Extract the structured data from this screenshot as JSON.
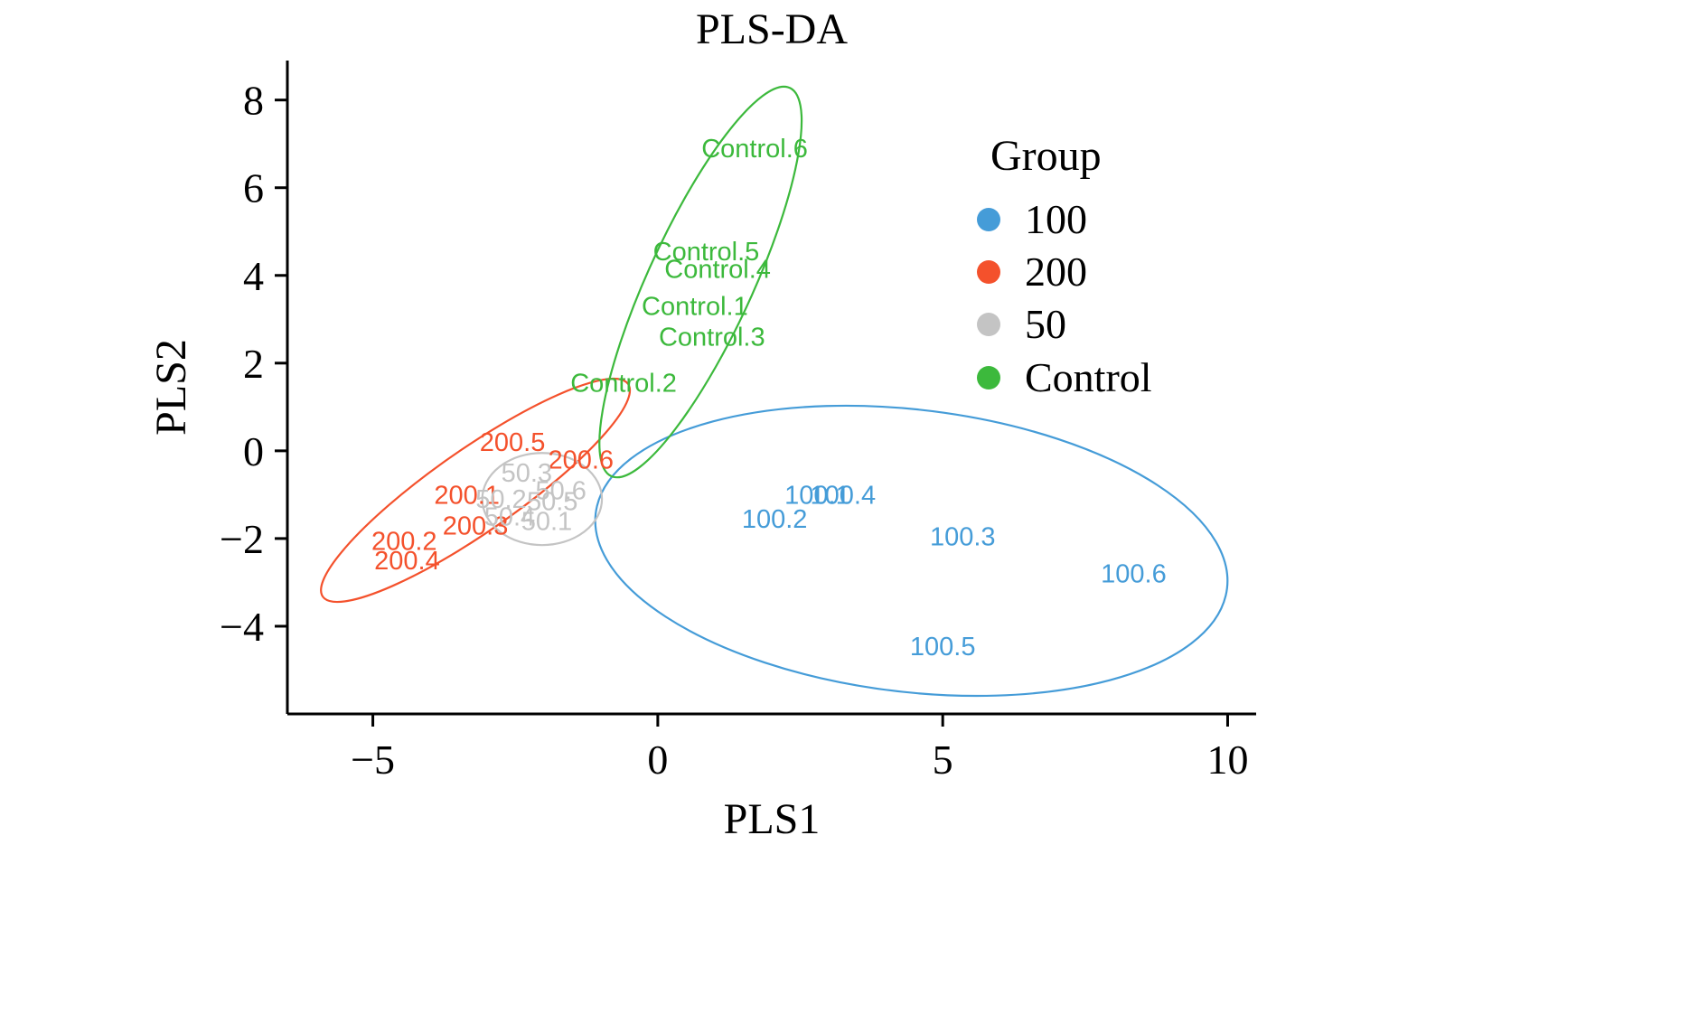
{
  "chart_data": {
    "type": "scatter",
    "title": "PLS-DA",
    "xlabel": "PLS1",
    "ylabel": "PLS2",
    "xlim": [
      -6.5,
      10.5
    ],
    "ylim": [
      -6.0,
      8.9
    ],
    "grid": false,
    "xticks": [
      {
        "v": -5,
        "label": "−5"
      },
      {
        "v": 0,
        "label": "0"
      },
      {
        "v": 5,
        "label": "5"
      },
      {
        "v": 10,
        "label": "10"
      }
    ],
    "yticks": [
      {
        "v": -4,
        "label": "−4"
      },
      {
        "v": -2,
        "label": "−2"
      },
      {
        "v": 0,
        "label": "0"
      },
      {
        "v": 2,
        "label": "2"
      },
      {
        "v": 4,
        "label": "4"
      },
      {
        "v": 6,
        "label": "6"
      },
      {
        "v": 8,
        "label": "8"
      }
    ],
    "legend": {
      "title": "Group",
      "position": "upper-right-inside"
    },
    "groups": [
      {
        "name": "100",
        "color": "#459CD8",
        "points": [
          {
            "label": "100.1",
            "x": 2.8,
            "y": -1.0
          },
          {
            "label": "100.4",
            "x": 3.25,
            "y": -1.0
          },
          {
            "label": "100.2",
            "x": 2.05,
            "y": -1.55
          },
          {
            "label": "100.3",
            "x": 5.35,
            "y": -1.95
          },
          {
            "label": "100.6",
            "x": 8.35,
            "y": -2.8
          },
          {
            "label": "100.5",
            "x": 5.0,
            "y": -4.45
          }
        ],
        "ellipse": {
          "cx": 4.45,
          "cy": -2.28,
          "rx": 5.61,
          "ry": 3.2,
          "angle": -10.5
        }
      },
      {
        "name": "200",
        "color": "#F4512C",
        "points": [
          {
            "label": "200.5",
            "x": -2.55,
            "y": 0.2
          },
          {
            "label": "200.6",
            "x": -1.35,
            "y": -0.2
          },
          {
            "label": "200.1",
            "x": -3.35,
            "y": -1.0
          },
          {
            "label": "200.3",
            "x": -3.2,
            "y": -1.7
          },
          {
            "label": "200.2",
            "x": -4.45,
            "y": -2.05
          },
          {
            "label": "200.4",
            "x": -4.4,
            "y": -2.5
          }
        ],
        "ellipse": {
          "cx": -3.2,
          "cy": -0.9,
          "rx": 3.62,
          "ry": 0.85,
          "angle": 43
        }
      },
      {
        "name": "50",
        "color": "#C4C4C4",
        "points": [
          {
            "label": "50.3",
            "x": -2.3,
            "y": -0.5
          },
          {
            "label": "50.6",
            "x": -1.7,
            "y": -0.9
          },
          {
            "label": "50.2",
            "x": -2.75,
            "y": -1.1
          },
          {
            "label": "50.5",
            "x": -1.85,
            "y": -1.15
          },
          {
            "label": "50.4",
            "x": -2.6,
            "y": -1.5
          },
          {
            "label": "50.1",
            "x": -1.95,
            "y": -1.6
          }
        ],
        "ellipse": {
          "cx": -2.03,
          "cy": -1.1,
          "rx": 1.05,
          "ry": 1.05,
          "angle": 0
        }
      },
      {
        "name": "Control",
        "color": "#3CB93C",
        "points": [
          {
            "label": "Control.6",
            "x": 1.7,
            "y": 6.9
          },
          {
            "label": "Control.5",
            "x": 0.85,
            "y": 4.55
          },
          {
            "label": "Control.4",
            "x": 1.05,
            "y": 4.15
          },
          {
            "label": "Control.1",
            "x": 0.65,
            "y": 3.3
          },
          {
            "label": "Control.3",
            "x": 0.95,
            "y": 2.6
          },
          {
            "label": "Control.2",
            "x": -0.6,
            "y": 1.55
          }
        ],
        "ellipse": {
          "cx": 0.75,
          "cy": 3.85,
          "rx": 4.7,
          "ry": 0.95,
          "angle": 71
        }
      }
    ]
  }
}
